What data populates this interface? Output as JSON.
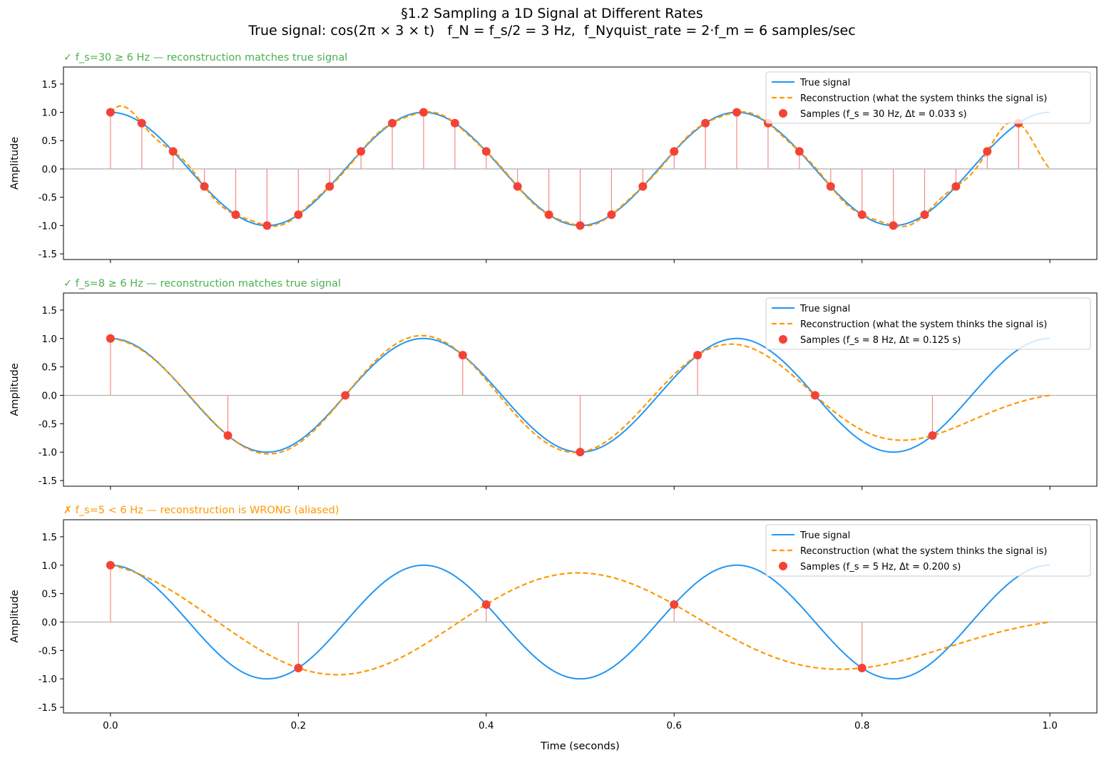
{
  "title": "§1.2 Sampling a 1D Signal at Different Rates",
  "subtitle": "True signal: cos(2π × 3 × t)   f_N = f_s/2 = 3 Hz,  f_Nyquist_rate = 2·f_m = 6 samples/sec",
  "colors": {
    "true": "#2196f3",
    "reconstruction": "#ff9800",
    "samples": "#f44336",
    "stem": "#f48a84",
    "ok": "#4caf50",
    "bad": "#ff9800"
  },
  "chart_data": [
    {
      "type": "line",
      "panel_title": "✓ f_s=30 ≥ 6 Hz — reconstruction matches true signal",
      "status": "ok",
      "ylabel": "Amplitude",
      "xlabel": "",
      "xlim": [
        -0.05,
        1.05
      ],
      "ylim": [
        -1.6,
        1.8
      ],
      "yticks": [
        "-1.5",
        "-1.0",
        "-0.5",
        "0.0",
        "0.5",
        "1.0",
        "1.5"
      ],
      "xticks": [],
      "grid": false,
      "legend_position": "top-right",
      "true_signal": {
        "name": "True signal",
        "frequency_hz": 3,
        "t_range": [
          0,
          1
        ]
      },
      "reconstruction": {
        "name": "Reconstruction (what the system thinks the signal is)",
        "method": "sinc"
      },
      "samples": {
        "name": "Samples (f_s = 30 Hz, Δt = 0.033 s)",
        "fs": 30,
        "values": [
          1,
          0.809,
          0.309,
          -0.309,
          -0.809,
          -1,
          -0.809,
          -0.309,
          0.309,
          0.809,
          1,
          0.809,
          0.309,
          -0.309,
          -0.809,
          -1,
          -0.809,
          -0.309,
          0.309,
          0.809,
          1,
          0.809,
          0.309,
          -0.309,
          -0.809,
          -1,
          -0.809,
          -0.309,
          0.309,
          0.809
        ]
      }
    },
    {
      "type": "line",
      "panel_title": "✓ f_s=8 ≥ 6 Hz — reconstruction matches true signal",
      "status": "ok",
      "ylabel": "Amplitude",
      "xlabel": "",
      "xlim": [
        -0.05,
        1.05
      ],
      "ylim": [
        -1.6,
        1.8
      ],
      "yticks": [
        "-1.5",
        "-1.0",
        "-0.5",
        "0.0",
        "0.5",
        "1.0",
        "1.5"
      ],
      "xticks": [],
      "grid": false,
      "legend_position": "top-right",
      "true_signal": {
        "name": "True signal",
        "frequency_hz": 3,
        "t_range": [
          0,
          1
        ]
      },
      "reconstruction": {
        "name": "Reconstruction (what the system thinks the signal is)",
        "method": "sinc"
      },
      "samples": {
        "name": "Samples (f_s = 8 Hz, Δt = 0.125 s)",
        "fs": 8,
        "values": [
          1,
          -0.707,
          0,
          0.707,
          -1,
          0.707,
          0,
          -0.707
        ]
      }
    },
    {
      "type": "line",
      "panel_title": "✗ f_s=5 < 6 Hz — reconstruction is WRONG (aliased)",
      "status": "bad",
      "ylabel": "Amplitude",
      "xlabel": "Time (seconds)",
      "xlim": [
        -0.05,
        1.05
      ],
      "ylim": [
        -1.6,
        1.8
      ],
      "yticks": [
        "-1.5",
        "-1.0",
        "-0.5",
        "0.0",
        "0.5",
        "1.0",
        "1.5"
      ],
      "xticks": [
        "0.0",
        "0.2",
        "0.4",
        "0.6",
        "0.8",
        "1.0"
      ],
      "grid": false,
      "legend_position": "top-right",
      "true_signal": {
        "name": "True signal",
        "frequency_hz": 3,
        "t_range": [
          0,
          1
        ]
      },
      "reconstruction": {
        "name": "Reconstruction (what the system thinks the signal is)",
        "method": "sinc"
      },
      "samples": {
        "name": "Samples (f_s = 5 Hz, Δt = 0.200 s)",
        "fs": 5,
        "values": [
          1,
          -0.809,
          0.309,
          0.309,
          -0.809
        ]
      }
    }
  ]
}
